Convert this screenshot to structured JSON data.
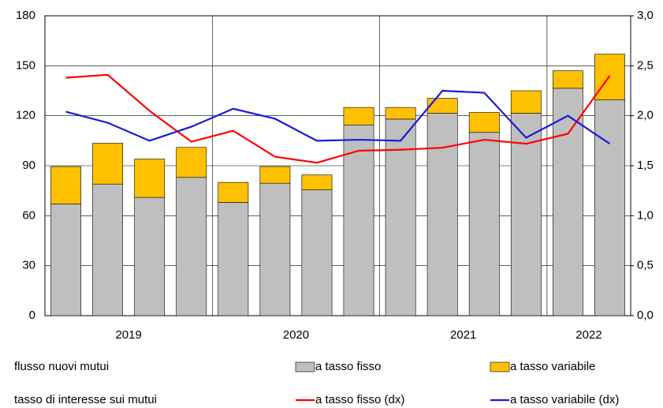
{
  "chart_data": {
    "type": "bar",
    "stacked": true,
    "categories": [
      "2019",
      null,
      null,
      null,
      "2020",
      null,
      null,
      null,
      "2021",
      null,
      null,
      null,
      "2022",
      null
    ],
    "series": [
      {
        "name": "a tasso fisso",
        "color": "#bfbfbf",
        "values": [
          67,
          79,
          71,
          83,
          68,
          79.5,
          75.5,
          114.5,
          118,
          121.5,
          110,
          121.5,
          136.5,
          129.5
        ]
      },
      {
        "name": "a tasso variabile",
        "color": "#ffc000",
        "values": [
          22.5,
          24.5,
          23,
          18,
          12,
          10,
          9,
          10.5,
          7,
          9,
          12,
          13.5,
          10.5,
          27.5
        ]
      },
      {
        "name": "a tasso fisso (dx)",
        "type": "line",
        "axis": "y2",
        "color": "#ff0000",
        "values": [
          2.38,
          2.41,
          2.05,
          1.74,
          1.85,
          1.59,
          1.53,
          1.65,
          1.66,
          1.68,
          1.76,
          1.72,
          1.82,
          2.4
        ]
      },
      {
        "name": "a tasso variabile (dx)",
        "type": "line",
        "axis": "y2",
        "color": "#1a1adc",
        "values": [
          2.04,
          1.93,
          1.75,
          1.89,
          2.07,
          1.97,
          1.75,
          1.76,
          1.75,
          2.25,
          2.23,
          1.78,
          2.0,
          1.72
        ]
      }
    ],
    "ylim": [
      0,
      180
    ],
    "yticks": [
      0,
      30,
      60,
      90,
      120,
      150,
      180
    ],
    "y2lim": [
      0,
      3
    ],
    "y2ticks": [
      {
        "value": 0,
        "label": "0,0"
      },
      {
        "value": 0.5,
        "label": "0,5"
      },
      {
        "value": 1,
        "label": "1,0"
      },
      {
        "value": 1.5,
        "label": "1,5"
      },
      {
        "value": 2,
        "label": "2,0"
      },
      {
        "value": 2.5,
        "label": "2,5"
      },
      {
        "value": 3,
        "label": "3,0"
      }
    ],
    "grid": true,
    "legend_titles": [
      "flusso nuovi mutui",
      "tasso di interesse sui mutui"
    ]
  }
}
